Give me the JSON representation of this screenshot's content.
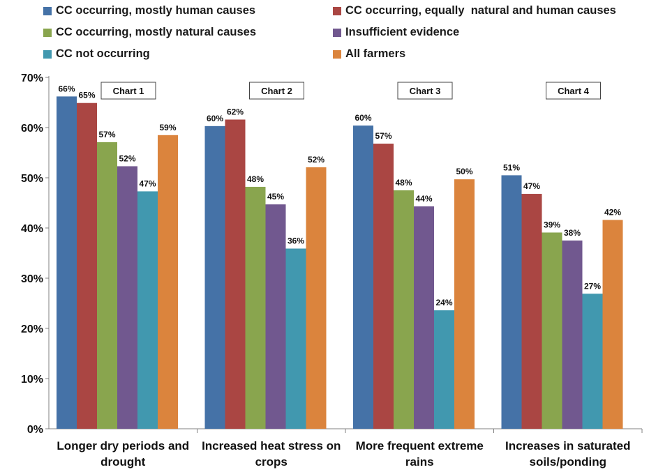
{
  "chart_data": {
    "type": "bar",
    "categories": [
      [
        "Longer dry periods and",
        "drought"
      ],
      [
        "Increased heat stress on",
        "crops"
      ],
      [
        "More frequent extreme",
        "rains"
      ],
      [
        "Increases in saturated",
        "soils/ponding"
      ]
    ],
    "chart_boxes": [
      "Chart 1",
      "Chart 2",
      "Chart 3",
      "Chart 4"
    ],
    "ylim": [
      0,
      70
    ],
    "y_ticks": [
      "0%",
      "10%",
      "20%",
      "30%",
      "40%",
      "50%",
      "60%",
      "70%"
    ],
    "grid": false,
    "legend_position": "top",
    "series": [
      {
        "name": "CC occurring, mostly human causes",
        "color": "#4572A7",
        "values": [
          66.2,
          60.3,
          60.4,
          50.5
        ],
        "labels": [
          "66%",
          "60%",
          "60%",
          "51%"
        ]
      },
      {
        "name": "CC occurring, equally  natural and human causes",
        "color": "#AA4643",
        "values": [
          64.9,
          61.6,
          56.8,
          46.8
        ],
        "labels": [
          "65%",
          "62%",
          "57%",
          "47%"
        ]
      },
      {
        "name": "CC occurring, mostly natural causes",
        "color": "#89A54E",
        "values": [
          57.1,
          48.2,
          47.5,
          39.1
        ],
        "labels": [
          "57%",
          "48%",
          "48%",
          "39%"
        ]
      },
      {
        "name": "Insufficient evidence",
        "color": "#71588F",
        "values": [
          52.3,
          44.7,
          44.3,
          37.5
        ],
        "labels": [
          "52%",
          "45%",
          "44%",
          "38%"
        ]
      },
      {
        "name": "CC not occurring",
        "color": "#4198AF",
        "values": [
          47.3,
          35.9,
          23.6,
          26.9
        ],
        "labels": [
          "47%",
          "36%",
          "24%",
          "27%"
        ]
      },
      {
        "name": "All farmers",
        "color": "#DB843D",
        "values": [
          58.5,
          52.1,
          49.7,
          41.6
        ],
        "labels": [
          "59%",
          "52%",
          "50%",
          "42%"
        ]
      }
    ]
  }
}
